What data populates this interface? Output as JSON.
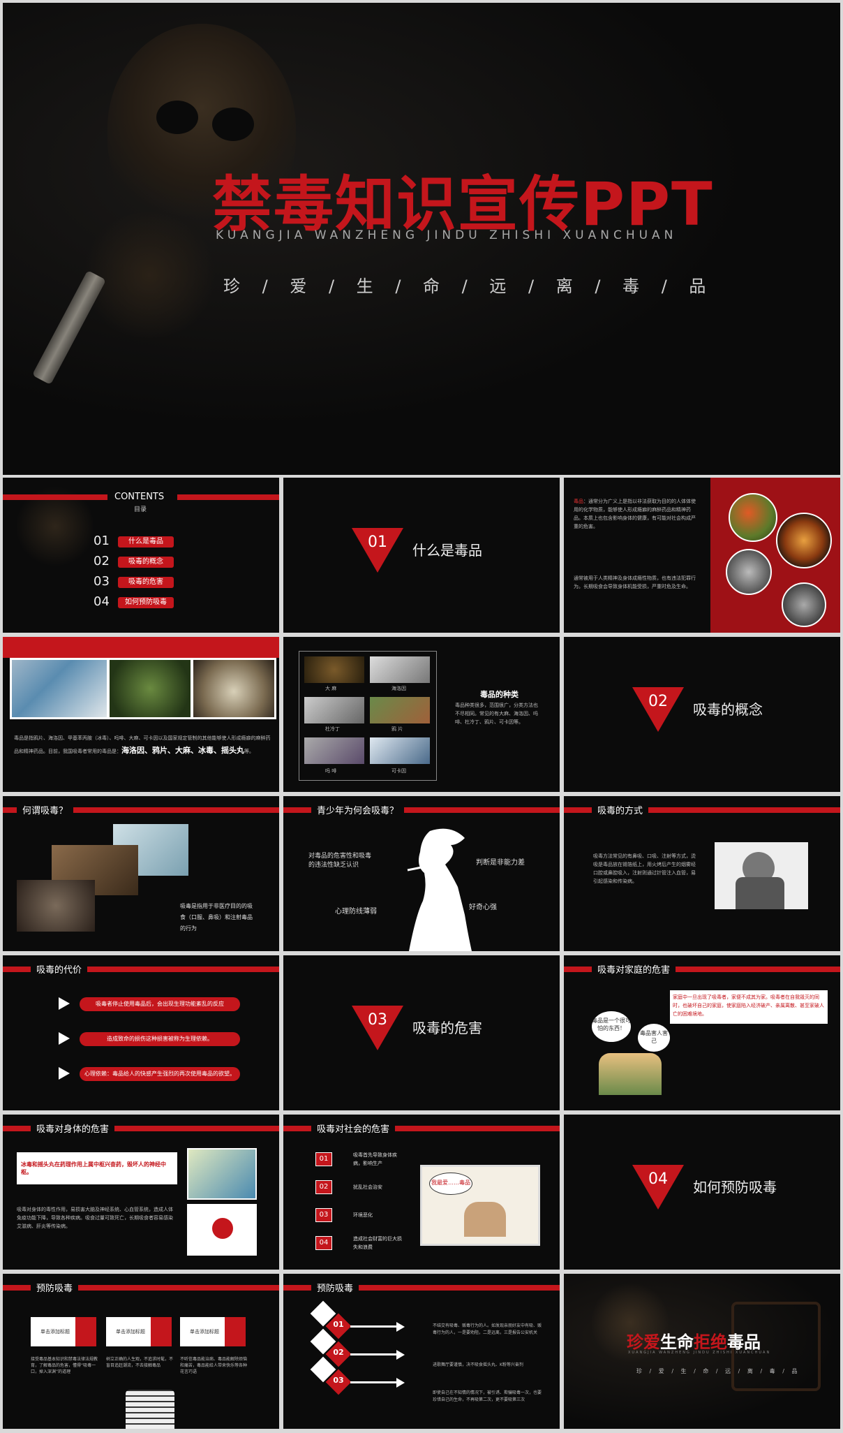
{
  "hero": {
    "title": "禁毒知识宣传PPT",
    "pinyin": "KUANGJIA WANZHENG JINDU ZHISHI XUANCHUAN",
    "subtitle": "珍 / 爱 / 生 / 命 / 远 / 离 / 毒 / 品"
  },
  "contents": {
    "title": "CONTENTS",
    "subtitle": "目录",
    "items": [
      {
        "num": "01",
        "label": "什么是毒品"
      },
      {
        "num": "02",
        "label": "吸毒的概念"
      },
      {
        "num": "03",
        "label": "吸毒的危害"
      },
      {
        "num": "04",
        "label": "如何预防吸毒"
      }
    ]
  },
  "sections": [
    {
      "num": "01",
      "title": "什么是毒品"
    },
    {
      "num": "02",
      "title": "吸毒的概念"
    },
    {
      "num": "03",
      "title": "吸毒的危害"
    },
    {
      "num": "04",
      "title": "如何预防吸毒"
    }
  ],
  "drug_def": {
    "keyword": "毒品",
    "para1": "通常分为广义上是指以非法获取为目的的人体体使用的化学物质，能够使人形成瘾癖的麻醉药品和精神药品。本质上也包含影响身体的健康，有可能对社会构成严重的危害。",
    "para2": "通常被用于人类精神及身体成瘾性物质，也有违法犯罪行为。长期吸食会导致身体机能受损，严重时危及生命。"
  },
  "drug_types_intro": {
    "text": "毒品是指鸦片、海洛因、甲基苯丙胺（冰毒）、吗啡、大麻、可卡因以及国家规定管制的其他能够使人形成瘾癖的麻醉药品和精神药品。目前，我国吸毒者常用的毒品是：",
    "highlight": "海洛因、鸦片、大麻、冰毒、摇头丸",
    "end": "等。"
  },
  "drug_kinds": {
    "title": "毒品的种类",
    "text": "毒品种类很多，范围很广，分类方法也不尽相同。常见的有大麻、海洛因、吗啡、杜冷丁、鸦片、可卡因等。",
    "captions": [
      "大 麻",
      "海洛因",
      "杜冷丁",
      "鸦 片",
      "吗 啡",
      "可卡因"
    ]
  },
  "what_is_use": {
    "header": "何谓吸毒？",
    "text": "吸毒是指用于非医疗目的的吸食（口服、鼻吸）和注射毒品的行为"
  },
  "youth": {
    "header": "青少年为何会吸毒？",
    "labels": [
      "对毒品的危害性和吸毒的违法性缺乏认识",
      "判断是非能力差",
      "好奇心强",
      "心理防线薄弱"
    ]
  },
  "method": {
    "header": "吸毒的方式",
    "text": "吸毒方法常见的有鼻吸、口吸、注射等方式，烫吸是毒品放在锡箔纸上，用火烤后产生的烟雾经口腔或鼻腔吸入，注射则通过针管注入血管，易引起感染和传染病。"
  },
  "cost": {
    "header": "吸毒的代价",
    "items": [
      "吸毒者停止使用毒品后，会出现生理功能紊乱的反应",
      "造成致命的损伤这种损害被称为生理依赖。",
      "心理依赖：毒品给人的快感产生强烈的再次使用毒品的欲望。"
    ]
  },
  "family": {
    "header": "吸毒对家庭的危害",
    "text": "家庭中一旦出现了吸毒者，家便不成其为家。吸毒者在自我毁灭的同时，也破坏自己的家庭，使家庭陷入经济破产、亲属离散、甚至家破人亡的困难境地。",
    "bubble1": "毒品是一个很可怕的东西！",
    "bubble2": "毒品害人害己"
  },
  "body_harm": {
    "header": "吸毒对身体的危害",
    "highlight": "冰毒和摇头丸在药理作用上属中枢兴奋药，毁坏人的神经中枢。",
    "text": "吸毒对身体的毒性作用，易损害大脑及神经系统、心血管系统，造成人体免疫功能下降，导致各种疾病。吸食过量可致死亡，长期吸食者容易感染艾滋病、肝炎等传染病。"
  },
  "society_harm": {
    "header": "吸毒对社会的危害",
    "items": [
      {
        "num": "01",
        "label": "吸毒首先导致身体疾病，影响生产"
      },
      {
        "num": "02",
        "label": "扰乱社会治安"
      },
      {
        "num": "03",
        "label": "环境恶化"
      },
      {
        "num": "04",
        "label": "造成社会财富的巨大损失和浪费"
      }
    ],
    "cartoon": "我最爱……毒品"
  },
  "prevent1": {
    "header": "预防吸毒",
    "cards": [
      {
        "title": "单击添加标题",
        "text": "接受毒品基本知识和禁毒法律法规教育，了解毒品的危害，懂得“吸毒一口，掉入深渊”的道理"
      },
      {
        "title": "单击添加标题",
        "text": "树立正确的人生观，不追求时髦，不盲目追赶潮流，不去接触毒品"
      },
      {
        "title": "单击添加标题",
        "text": "不听信毒品能治病、毒品能解除烦恼和痛苦，毒品能给人带来快乐等各种花言巧语"
      }
    ]
  },
  "prevent2": {
    "header": "预防吸毒",
    "items": [
      {
        "num": "01",
        "text": "不结交有吸毒、贩毒行为的人。如发现亲朋好友中有吸、贩毒行为的人，一是要劝阻，二是远离，三是报告公安机关"
      },
      {
        "num": "02",
        "text": "进歌舞厅要谨慎，决不吸食摇头丸、K粉等兴奋剂"
      },
      {
        "num": "03",
        "text": "即使自己在不知情的情况下，被引诱、欺骗吸毒一次，也要珍惜自己的生命，不再吸第二次，更不要吸第三次"
      }
    ]
  },
  "ending": {
    "title_red1": "珍爱",
    "title_white1": "生命",
    "title_red2": "拒绝",
    "title_white2": "毒品",
    "pinyin": "XUANGJIA WANZHENG JINDU ZHISHI XUANCHUAN",
    "subtitle": "珍 / 爱 / 生 / 命 / 远 / 离 / 毒 / 品"
  },
  "colors": {
    "accent": "#c4161c",
    "background": "#0b0b0b"
  }
}
